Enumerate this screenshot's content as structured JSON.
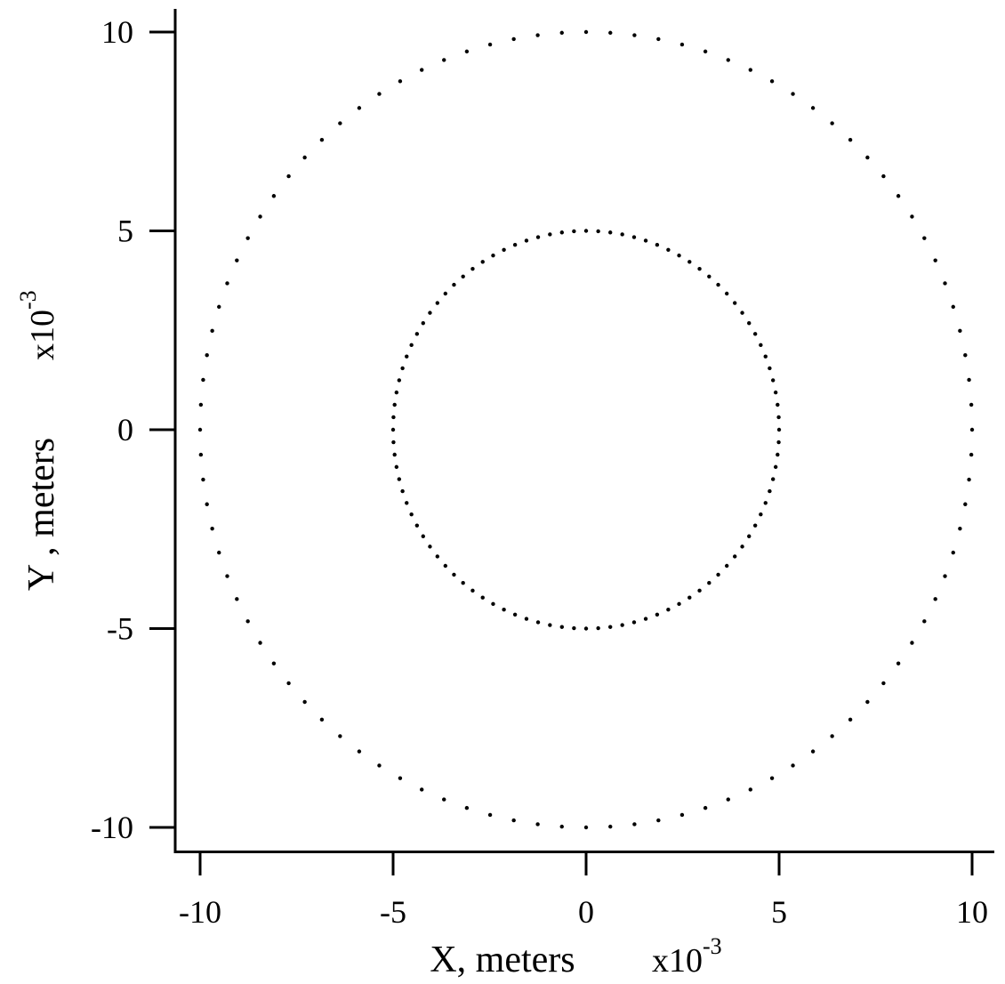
{
  "chart_data": {
    "type": "scatter",
    "title": "",
    "xlabel": "X, meters",
    "ylabel": "Y , meters",
    "x_multiplier": {
      "base": "x10",
      "exponent": "-3"
    },
    "y_multiplier": {
      "base": "x10",
      "exponent": "-3"
    },
    "xlim": [
      -10.7,
      10.7
    ],
    "ylim": [
      -10.6,
      10.6
    ],
    "x_ticks": [
      -10,
      -5,
      0,
      5,
      10
    ],
    "y_ticks": [
      -10,
      -5,
      0,
      5,
      10
    ],
    "x_tick_labels": [
      "-10",
      "-5",
      "0",
      "5",
      "10"
    ],
    "y_tick_labels": [
      "-10",
      "-5",
      "0",
      "5",
      "10"
    ],
    "grid": false,
    "series": [
      {
        "radius": 10,
        "center": [
          0,
          0
        ],
        "num_points": 100,
        "color": "#000000"
      },
      {
        "radius": 5,
        "center": [
          0,
          0
        ],
        "num_points": 100,
        "color": "#000000"
      }
    ]
  }
}
